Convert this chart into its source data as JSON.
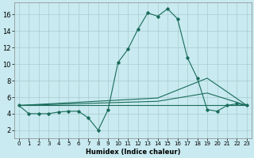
{
  "xlabel": "Humidex (Indice chaleur)",
  "bg_color": "#c8eaf0",
  "grid_color": "#a8ccd0",
  "line_color": "#1a6b5a",
  "xlim": [
    -0.5,
    23.5
  ],
  "ylim": [
    1.0,
    17.5
  ],
  "xticks": [
    0,
    1,
    2,
    3,
    4,
    5,
    6,
    7,
    8,
    9,
    10,
    11,
    12,
    13,
    14,
    15,
    16,
    17,
    18,
    19,
    20,
    21,
    22,
    23
  ],
  "yticks": [
    2,
    4,
    6,
    8,
    10,
    12,
    14,
    16
  ],
  "lines": [
    {
      "x": [
        0,
        1,
        2,
        3,
        4,
        5,
        6,
        7,
        8,
        9,
        10,
        11,
        12,
        13,
        14,
        15,
        16,
        17,
        18,
        19,
        20,
        21,
        22,
        23
      ],
      "y": [
        5,
        4,
        4,
        4,
        4.2,
        4.3,
        4.3,
        3.5,
        2.0,
        4.5,
        10.2,
        11.8,
        14.2,
        16.2,
        15.8,
        16.7,
        15.5,
        10.8,
        8.3,
        4.5,
        4.3,
        5.0,
        5.2,
        5.0
      ],
      "marker": true
    },
    {
      "x": [
        0,
        23
      ],
      "y": [
        5.0,
        5.0
      ],
      "marker": false
    },
    {
      "x": [
        0,
        14,
        19,
        23
      ],
      "y": [
        5.0,
        5.5,
        6.5,
        5.0
      ],
      "marker": false
    },
    {
      "x": [
        0,
        14,
        19,
        23
      ],
      "y": [
        5.0,
        5.9,
        8.3,
        5.0
      ],
      "marker": false
    }
  ]
}
